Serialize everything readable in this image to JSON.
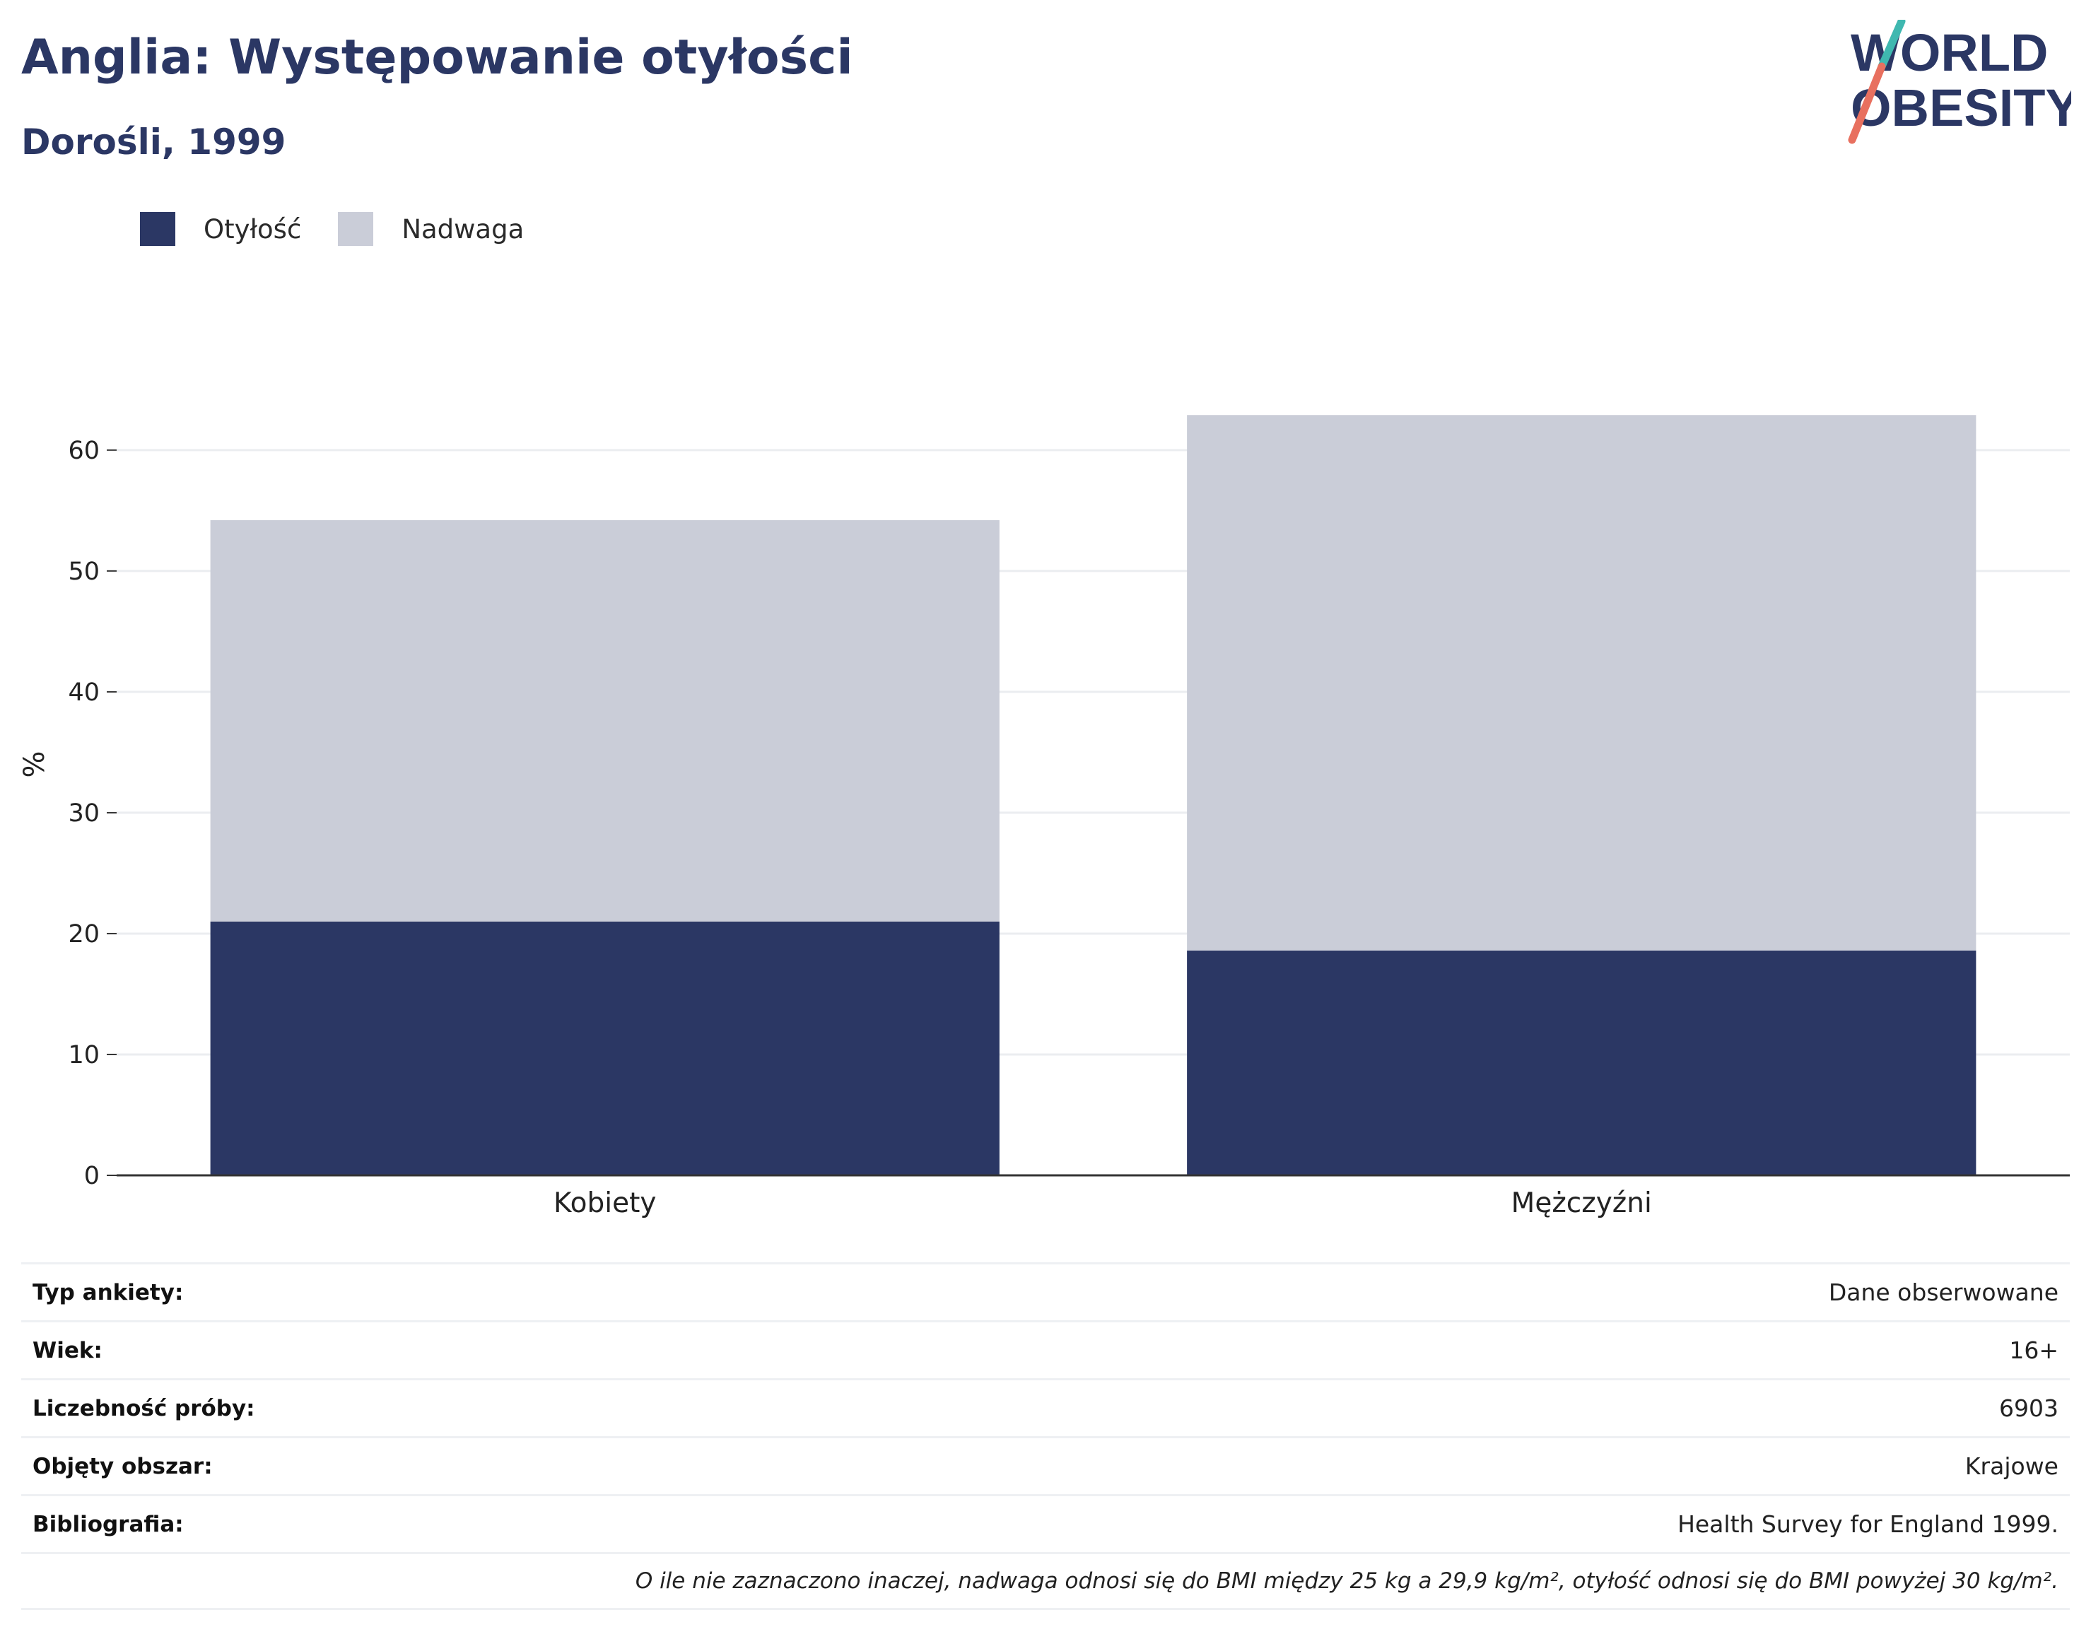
{
  "header": {
    "title": "Anglia: Występowanie otyłości",
    "subtitle": "Dorośli, 1999"
  },
  "logo": {
    "line1": "WORLD",
    "line2": "OBESITY",
    "colors": {
      "text": "#2b3764",
      "slash_top": "#3fb8b0",
      "slash_bottom": "#e8705f"
    }
  },
  "legend": [
    {
      "label": "Otyłość",
      "color": "#2b3764"
    },
    {
      "label": "Nadwaga",
      "color": "#cacdd8"
    }
  ],
  "chart_data": {
    "type": "bar",
    "stacked": true,
    "categories": [
      "Kobiety",
      "Mężczyźni"
    ],
    "series": [
      {
        "name": "Otyłość",
        "values": [
          21.0,
          18.6
        ],
        "color": "#2b3764"
      },
      {
        "name": "Nadwaga",
        "values": [
          33.2,
          44.3
        ],
        "color": "#cacdd8"
      }
    ],
    "ylabel": "%",
    "ylim": [
      0,
      68
    ],
    "yticks": [
      0,
      10,
      20,
      30,
      40,
      50,
      60
    ],
    "grid": true,
    "legend_position": "top-left"
  },
  "info": {
    "rows": [
      {
        "label": "Typ ankiety:",
        "value": "Dane obserwowane"
      },
      {
        "label": "Wiek:",
        "value": "16+"
      },
      {
        "label": "Liczebność próby:",
        "value": "6903"
      },
      {
        "label": "Objęty obszar:",
        "value": "Krajowe"
      },
      {
        "label": "Bibliografia:",
        "value": "Health Survey for England 1999."
      }
    ],
    "note": "O ile nie zaznaczono inaczej, nadwaga odnosi się do BMI między 25 kg a 29,9 kg/m², otyłość odnosi się do BMI powyżej 30 kg/m²."
  }
}
